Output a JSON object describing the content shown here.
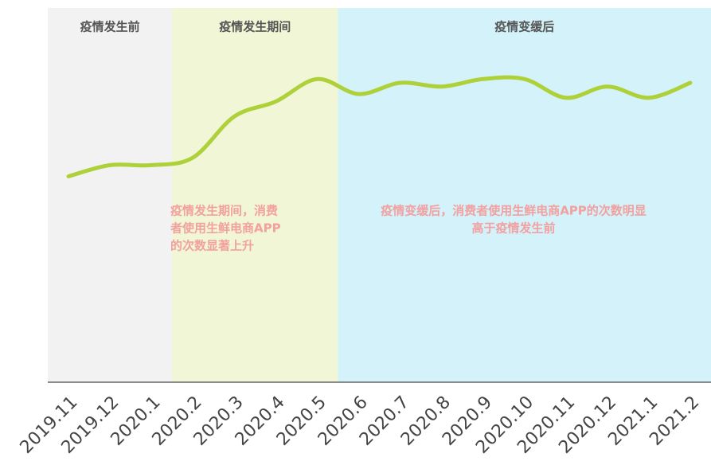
{
  "chart_data": {
    "type": "line",
    "categories": [
      "2019.11",
      "2019.12",
      "2020.1",
      "2020.2",
      "2020.3",
      "2020.4",
      "2020.5",
      "2020.6",
      "2020.7",
      "2020.8",
      "2020.9",
      "2020.10",
      "2020.11",
      "2020.12",
      "2021.1",
      "2021.2"
    ],
    "values": [
      55,
      58,
      58,
      60,
      71,
      75,
      81,
      77,
      80,
      79,
      81,
      81,
      76,
      79,
      76,
      80
    ],
    "color": "#aed13a",
    "ylim": [
      0,
      100
    ],
    "regions": [
      {
        "label": "疫情发生前",
        "from": "2019.11",
        "to": "2020.1",
        "color": "#f2f2f2"
      },
      {
        "label": "疫情发生期间",
        "from": "2020.2",
        "to": "2020.5",
        "color": "#f1f6d6"
      },
      {
        "label": "疫情变缓后",
        "from": "2020.6",
        "to": "2021.2",
        "color": "#d3f2f9"
      }
    ],
    "annotations": [
      {
        "lines": [
          "疫情发生期间，消费",
          "者使用生鲜电商APP",
          "的次数显著上升"
        ],
        "color": "#f2a0a0"
      },
      {
        "lines": [
          "疫情变缓后，消费者使用生鲜电商APP的次数明显",
          "高于疫情发生前"
        ],
        "color": "#f2a0a0"
      }
    ]
  }
}
